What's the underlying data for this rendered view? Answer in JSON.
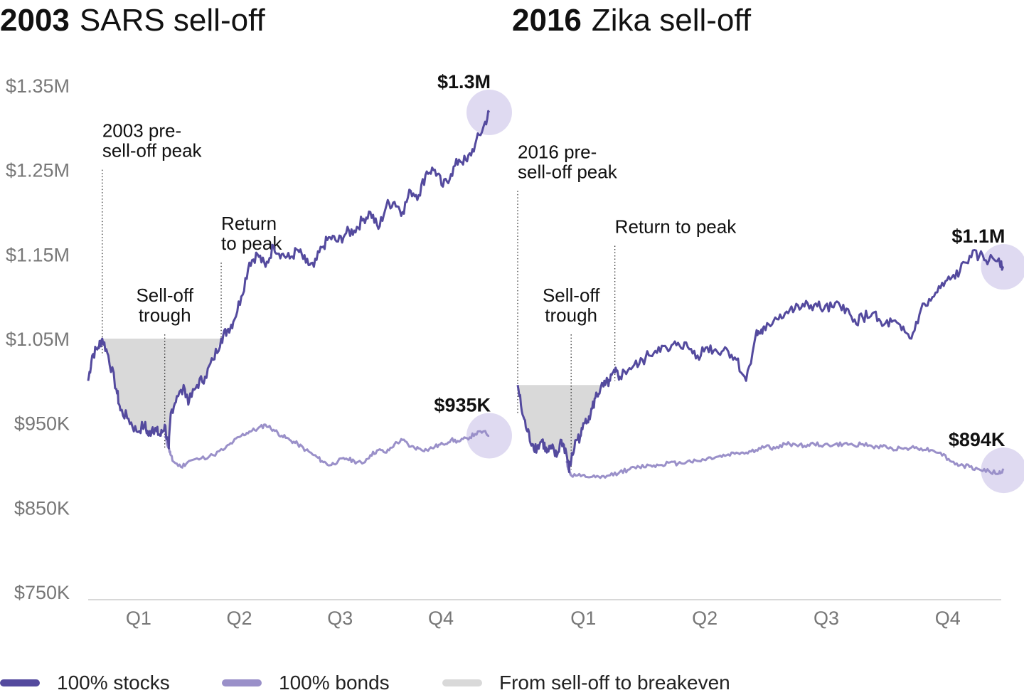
{
  "colors": {
    "stocks": "#544A9E",
    "bonds": "#9A90C9",
    "shade": "#D9D9D9",
    "highlight": "#D9D4EE",
    "axis": "#CCCCCC",
    "tick_text": "#777777",
    "text": "#111111"
  },
  "legend": [
    {
      "label": "100% stocks",
      "color": "#544A9E"
    },
    {
      "label": "100% bonds",
      "color": "#9A90C9"
    },
    {
      "label": "From sell-off to breakeven",
      "color": "#D9D9D9"
    }
  ],
  "chart_data": [
    {
      "type": "line",
      "title_bold": "2003",
      "title_rest": "SARS sell-off",
      "ylim": [
        750000,
        1350000
      ],
      "y_ticks": [
        {
          "value": 1350000,
          "label": "$1.35M"
        },
        {
          "value": 1250000,
          "label": "$1.25M"
        },
        {
          "value": 1150000,
          "label": "$1.15M"
        },
        {
          "value": 1050000,
          "label": "$1.05M"
        },
        {
          "value": 950000,
          "label": "$950K"
        },
        {
          "value": 850000,
          "label": "$850K"
        },
        {
          "value": 750000,
          "label": "$750K"
        }
      ],
      "xlim": [
        0,
        1.1
      ],
      "x_ticks": [
        {
          "value": 0.125,
          "label": "Q1"
        },
        {
          "value": 0.375,
          "label": "Q2"
        },
        {
          "value": 0.625,
          "label": "Q3"
        },
        {
          "value": 0.875,
          "label": "Q4"
        }
      ],
      "series": [
        {
          "name": "100% stocks",
          "x": [
            0,
            0.01,
            0.025,
            0.035,
            0.05,
            0.07,
            0.08,
            0.1,
            0.12,
            0.14,
            0.15,
            0.16,
            0.17,
            0.18,
            0.19,
            0.2,
            0.205,
            0.22,
            0.24,
            0.25,
            0.27,
            0.29,
            0.31,
            0.33,
            0.345,
            0.36,
            0.38,
            0.4,
            0.42,
            0.44,
            0.46,
            0.48,
            0.5,
            0.52,
            0.54,
            0.56,
            0.58,
            0.6,
            0.62,
            0.64,
            0.66,
            0.68,
            0.7,
            0.72,
            0.74,
            0.76,
            0.78,
            0.8,
            0.82,
            0.84,
            0.86,
            0.88,
            0.9,
            0.92,
            0.94,
            0.96,
            0.98,
            0.995
          ],
          "values": [
            1000000,
            1030000,
            1040000,
            1050000,
            1030000,
            990000,
            965000,
            955000,
            940000,
            948000,
            935000,
            945000,
            940000,
            935000,
            948000,
            920000,
            962000,
            982000,
            990000,
            975000,
            995000,
            1005000,
            1025000,
            1050000,
            1060000,
            1070000,
            1100000,
            1140000,
            1150000,
            1135000,
            1160000,
            1150000,
            1145000,
            1155000,
            1140000,
            1135000,
            1158000,
            1170000,
            1165000,
            1175000,
            1178000,
            1190000,
            1200000,
            1180000,
            1208000,
            1212000,
            1200000,
            1225000,
            1220000,
            1248000,
            1250000,
            1230000,
            1245000,
            1262000,
            1260000,
            1280000,
            1300000,
            1318000
          ]
        },
        {
          "name": "100% bonds",
          "x": [
            0.19,
            0.2,
            0.205,
            0.21,
            0.23,
            0.25,
            0.28,
            0.31,
            0.34,
            0.36,
            0.38,
            0.4,
            0.42,
            0.44,
            0.46,
            0.48,
            0.5,
            0.52,
            0.54,
            0.56,
            0.58,
            0.6,
            0.62,
            0.64,
            0.66,
            0.68,
            0.7,
            0.72,
            0.74,
            0.76,
            0.78,
            0.8,
            0.82,
            0.84,
            0.86,
            0.88,
            0.9,
            0.92,
            0.94,
            0.96,
            0.98,
            0.995
          ],
          "values": [
            935000,
            920000,
            912000,
            905000,
            898000,
            905000,
            908000,
            912000,
            920000,
            928000,
            935000,
            940000,
            943000,
            948000,
            942000,
            935000,
            930000,
            925000,
            918000,
            912000,
            905000,
            900000,
            905000,
            908000,
            905000,
            902000,
            912000,
            918000,
            915000,
            925000,
            930000,
            922000,
            920000,
            918000,
            922000,
            925000,
            930000,
            928000,
            932000,
            937000,
            940000,
            935000
          ]
        }
      ],
      "shade": {
        "from_x": 0.035,
        "to_x": 0.33,
        "level": 1050000
      },
      "markers": [
        {
          "x": 0.035,
          "top_value": 1250000,
          "label_lines": [
            "2003 pre-",
            "sell-off peak"
          ]
        },
        {
          "x": 0.19,
          "top_value": 1055000,
          "label_lines": [
            "Sell-off",
            "trough"
          ]
        },
        {
          "x": 0.33,
          "top_value": 1140000,
          "label_lines": [
            "Return",
            "to peak"
          ]
        }
      ],
      "end_labels": [
        {
          "series": "100% stocks",
          "label": "$1.3M",
          "value": 1318000
        },
        {
          "series": "100% bonds",
          "label": "$935K",
          "value": 935000
        }
      ]
    },
    {
      "type": "line",
      "title_bold": "2016",
      "title_rest": "Zika sell-off",
      "ylim": [
        750000,
        1350000
      ],
      "xlim": [
        0,
        1.1
      ],
      "x_ticks": [
        {
          "value": 0.135,
          "label": "Q1"
        },
        {
          "value": 0.385,
          "label": "Q2"
        },
        {
          "value": 0.635,
          "label": "Q3"
        },
        {
          "value": 0.885,
          "label": "Q4"
        }
      ],
      "series": [
        {
          "name": "100% stocks",
          "x": [
            0,
            0.01,
            0.02,
            0.03,
            0.04,
            0.05,
            0.06,
            0.07,
            0.08,
            0.09,
            0.1,
            0.105,
            0.11,
            0.12,
            0.13,
            0.14,
            0.15,
            0.16,
            0.17,
            0.18,
            0.19,
            0.2,
            0.21,
            0.23,
            0.25,
            0.27,
            0.29,
            0.31,
            0.33,
            0.35,
            0.37,
            0.39,
            0.41,
            0.43,
            0.45,
            0.47,
            0.49,
            0.5,
            0.51,
            0.53,
            0.55,
            0.57,
            0.59,
            0.61,
            0.63,
            0.65,
            0.67,
            0.69,
            0.71,
            0.73,
            0.75,
            0.77,
            0.79,
            0.81,
            0.83,
            0.85,
            0.87,
            0.89,
            0.91,
            0.93,
            0.95,
            0.97,
            0.99,
            1.0
          ],
          "values": [
            995000,
            960000,
            940000,
            925000,
            920000,
            930000,
            915000,
            920000,
            910000,
            930000,
            915000,
            895000,
            905000,
            930000,
            935000,
            955000,
            960000,
            980000,
            990000,
            995000,
            1000000,
            1010000,
            1005000,
            1015000,
            1020000,
            1030000,
            1040000,
            1035000,
            1045000,
            1040000,
            1030000,
            1040000,
            1035000,
            1038000,
            1025000,
            1000000,
            1055000,
            1058000,
            1060000,
            1075000,
            1080000,
            1085000,
            1088000,
            1090000,
            1085000,
            1087000,
            1090000,
            1070000,
            1075000,
            1080000,
            1065000,
            1070000,
            1060000,
            1050000,
            1085000,
            1095000,
            1110000,
            1120000,
            1130000,
            1148000,
            1148000,
            1143000,
            1145000,
            1135000
          ]
        },
        {
          "name": "100% bonds",
          "x": [
            0.1,
            0.105,
            0.11,
            0.13,
            0.15,
            0.17,
            0.19,
            0.21,
            0.23,
            0.25,
            0.27,
            0.29,
            0.31,
            0.33,
            0.35,
            0.37,
            0.39,
            0.41,
            0.43,
            0.45,
            0.47,
            0.49,
            0.51,
            0.53,
            0.55,
            0.57,
            0.59,
            0.61,
            0.63,
            0.65,
            0.67,
            0.69,
            0.71,
            0.73,
            0.75,
            0.77,
            0.79,
            0.81,
            0.83,
            0.85,
            0.87,
            0.89,
            0.91,
            0.93,
            0.95,
            0.97,
            0.99,
            1.0
          ],
          "values": [
            905000,
            895000,
            888000,
            887000,
            886000,
            885000,
            888000,
            892000,
            895000,
            898000,
            900000,
            900000,
            903000,
            902000,
            905000,
            905000,
            908000,
            910000,
            912000,
            915000,
            915000,
            918000,
            922000,
            920000,
            925000,
            925000,
            923000,
            925000,
            924000,
            924000,
            925000,
            924000,
            925000,
            922000,
            922000,
            920000,
            920000,
            921000,
            920000,
            918000,
            915000,
            905000,
            900000,
            898000,
            895000,
            893000,
            890000,
            894000
          ]
        }
      ],
      "shade": {
        "from_x": 0.0,
        "to_x": 0.2,
        "level": 995000
      },
      "markers": [
        {
          "x": 0.0,
          "top_value": 1225000,
          "label_lines": [
            "2016 pre-",
            "sell-off peak"
          ]
        },
        {
          "x": 0.11,
          "top_value": 1055000,
          "label_lines": [
            "Sell-off",
            "trough"
          ]
        },
        {
          "x": 0.2,
          "top_value": 1160000,
          "label_lines": [
            "Return to peak"
          ]
        }
      ],
      "end_labels": [
        {
          "series": "100% stocks",
          "label": "$1.1M",
          "value": 1135000
        },
        {
          "series": "100% bonds",
          "label": "$894K",
          "value": 894000
        }
      ]
    }
  ]
}
